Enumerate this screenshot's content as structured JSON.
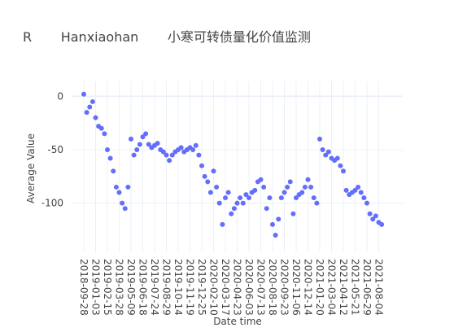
{
  "chart_data": {
    "type": "scatter",
    "title": "R       Hanxiaohan       小寒可转债量化价值监测",
    "x_label": "Date time",
    "y_label": "Average   Value",
    "color": "#636efa",
    "grid": true,
    "ylim": [
      -146,
      14
    ],
    "yticks": [
      0,
      -50,
      -100
    ],
    "categories": [
      "2018-09-28",
      null,
      null,
      null,
      "2019-01-03",
      null,
      null,
      null,
      "2019-02-15",
      null,
      null,
      null,
      "2019-03-28",
      null,
      null,
      null,
      "2019-05-09",
      null,
      null,
      null,
      "2019-06-18",
      null,
      null,
      null,
      "2019-07-24",
      null,
      null,
      null,
      "2019-08-29",
      null,
      null,
      null,
      "2019-10-14",
      null,
      null,
      null,
      "2019-11-19",
      null,
      null,
      null,
      "2019-12-25",
      null,
      null,
      null,
      "2020-02-10",
      null,
      null,
      null,
      "2020-03-17",
      null,
      null,
      null,
      "2020-04-23",
      null,
      null,
      null,
      "2020-06-03",
      null,
      null,
      null,
      "2020-07-13",
      null,
      null,
      null,
      "2020-08-18",
      null,
      null,
      null,
      "2020-09-23",
      null,
      null,
      null,
      "2020-11-06",
      null,
      null,
      null,
      "2020-12-14",
      null,
      null,
      null,
      "2021-01-20",
      null,
      null,
      null,
      "2021-03-04",
      null,
      null,
      null,
      "2021-04-12",
      null,
      null,
      null,
      "2021-05-21",
      null,
      null,
      null,
      "2021-06-29",
      null,
      null,
      null,
      "2021-08-04",
      null
    ],
    "values": [
      2,
      -15,
      -10,
      -5,
      -20,
      -28,
      -30,
      -35,
      -50,
      -58,
      -70,
      -85,
      -90,
      -100,
      -105,
      -85,
      -40,
      -55,
      -50,
      -45,
      -38,
      -35,
      -45,
      -48,
      -46,
      -44,
      -50,
      -52,
      -55,
      -60,
      -55,
      -52,
      -50,
      -48,
      -52,
      -50,
      -48,
      -50,
      -46,
      -55,
      -65,
      -75,
      -80,
      -90,
      -70,
      -85,
      -100,
      -120,
      -95,
      -90,
      -110,
      -105,
      -100,
      -95,
      -100,
      -92,
      -95,
      -90,
      -88,
      -80,
      -78,
      -85,
      -105,
      -95,
      -120,
      -130,
      -115,
      -95,
      -90,
      -85,
      -80,
      -110,
      -95,
      -92,
      -90,
      -85,
      -78,
      -85,
      -95,
      -100,
      -40,
      -50,
      -55,
      -52,
      -58,
      -60,
      -58,
      -65,
      -70,
      -88,
      -92,
      -90,
      -88,
      -85,
      -90,
      -95,
      -100,
      -110,
      -115,
      -112,
      -118,
      -120
    ]
  }
}
